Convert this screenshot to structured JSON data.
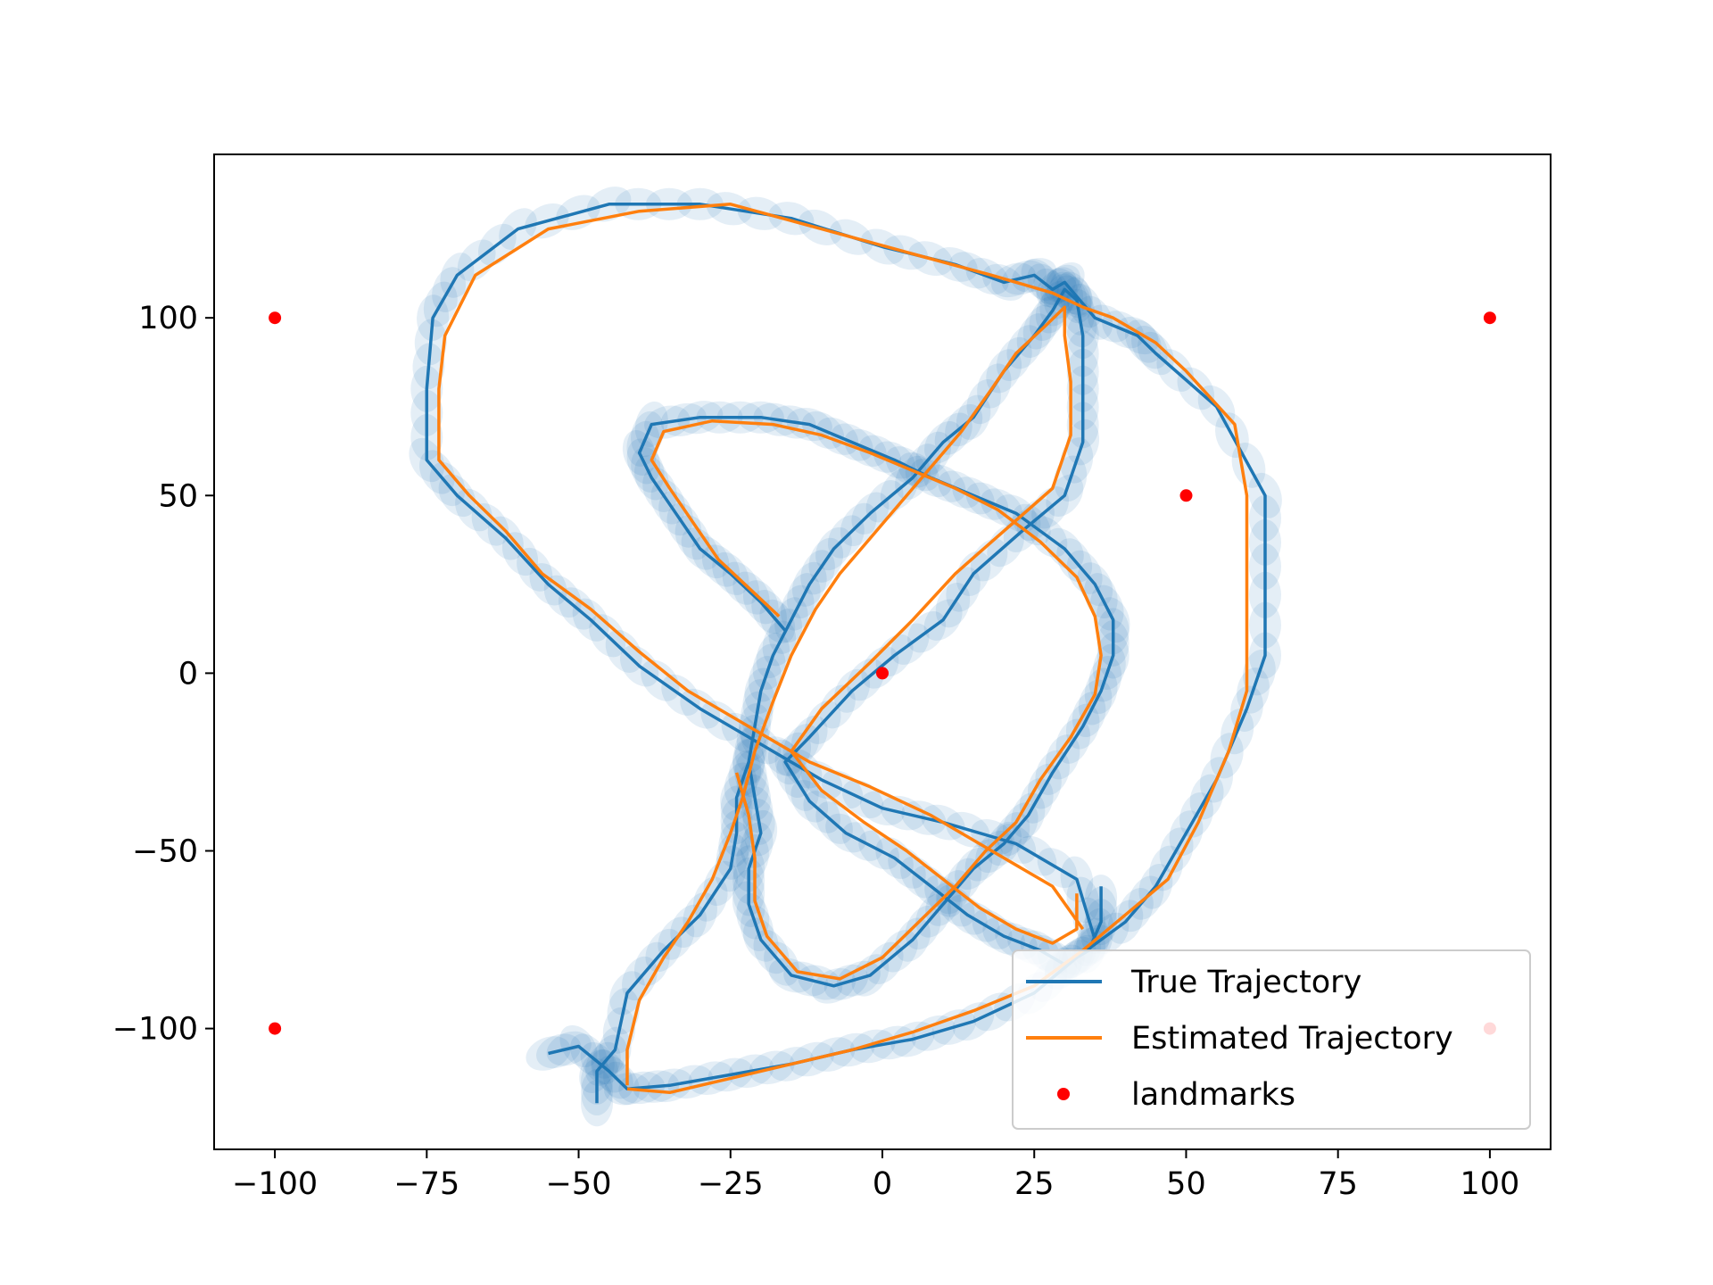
{
  "chart_data": {
    "type": "line",
    "title": "",
    "xlabel": "",
    "ylabel": "",
    "xlim": [
      -110,
      110
    ],
    "ylim": [
      -134,
      146
    ],
    "grid": false,
    "legend_position": "lower-right",
    "x_ticks": [
      -100,
      -75,
      -50,
      -25,
      0,
      25,
      50,
      75,
      100
    ],
    "x_tick_labels": [
      "−100",
      "−75",
      "−50",
      "−25",
      "0",
      "25",
      "50",
      "75",
      "100"
    ],
    "y_ticks": [
      -100,
      -50,
      0,
      50,
      100
    ],
    "y_tick_labels": [
      "−100",
      "−50",
      "0",
      "50",
      "100"
    ],
    "colors": {
      "true": "#1f77b4",
      "estimated": "#ff7f0e",
      "landmarks": "#ff0000",
      "uncertainty": "#1f77b4"
    },
    "series": [
      {
        "name": "True Trajectory",
        "kind": "line",
        "points": [
          [
            -55,
            -107
          ],
          [
            -50,
            -105
          ],
          [
            -45,
            -112
          ],
          [
            -42,
            -117
          ],
          [
            -35,
            -116
          ],
          [
            -25,
            -113
          ],
          [
            -15,
            -110
          ],
          [
            -5,
            -106
          ],
          [
            5,
            -103
          ],
          [
            15,
            -98
          ],
          [
            25,
            -90
          ],
          [
            32,
            -80
          ],
          [
            40,
            -70
          ],
          [
            45,
            -60
          ],
          [
            50,
            -45
          ],
          [
            55,
            -30
          ],
          [
            60,
            -10
          ],
          [
            63,
            5
          ],
          [
            63,
            30
          ],
          [
            63,
            50
          ],
          [
            55,
            75
          ],
          [
            45,
            90
          ],
          [
            42,
            95
          ],
          [
            35,
            100
          ],
          [
            30,
            110
          ],
          [
            28,
            108
          ],
          [
            25,
            112
          ],
          [
            20,
            110
          ],
          [
            12,
            115
          ],
          [
            0,
            120
          ],
          [
            -15,
            128
          ],
          [
            -30,
            132
          ],
          [
            -45,
            132
          ],
          [
            -60,
            125
          ],
          [
            -70,
            112
          ],
          [
            -74,
            100
          ],
          [
            -75,
            80
          ],
          [
            -75,
            60
          ],
          [
            -70,
            50
          ],
          [
            -62,
            38
          ],
          [
            -55,
            25
          ],
          [
            -48,
            15
          ],
          [
            -40,
            2
          ],
          [
            -30,
            -10
          ],
          [
            -20,
            -20
          ],
          [
            -10,
            -30
          ],
          [
            0,
            -38
          ],
          [
            10,
            -42
          ],
          [
            22,
            -48
          ],
          [
            32,
            -58
          ],
          [
            35,
            -75
          ]
        ]
      },
      {
        "name": "",
        "kind": "line",
        "points": [
          [
            -47,
            -121
          ],
          [
            -47,
            -112
          ],
          [
            -44,
            -106
          ],
          [
            -42,
            -90
          ],
          [
            -36,
            -78
          ],
          [
            -30,
            -68
          ],
          [
            -25,
            -55
          ],
          [
            -24,
            -45
          ],
          [
            -24,
            -35
          ],
          [
            -22,
            -25
          ],
          [
            -21,
            -15
          ],
          [
            -20,
            -5
          ],
          [
            -18,
            5
          ],
          [
            -15,
            15
          ],
          [
            -12,
            25
          ],
          [
            -8,
            35
          ],
          [
            -2,
            45
          ],
          [
            5,
            55
          ],
          [
            10,
            65
          ],
          [
            15,
            72
          ],
          [
            20,
            85
          ],
          [
            25,
            95
          ],
          [
            28,
            102
          ],
          [
            30,
            108
          ],
          [
            32,
            105
          ],
          [
            33,
            95
          ],
          [
            33,
            80
          ],
          [
            33,
            65
          ],
          [
            30,
            50
          ],
          [
            23,
            40
          ],
          [
            15,
            28
          ],
          [
            10,
            15
          ],
          [
            2,
            5
          ],
          [
            -5,
            -5
          ],
          [
            -12,
            -18
          ],
          [
            -16,
            -25
          ],
          [
            -12,
            -36
          ],
          [
            -6,
            -45
          ],
          [
            2,
            -52
          ],
          [
            8,
            -60
          ],
          [
            14,
            -68
          ],
          [
            20,
            -74
          ],
          [
            26,
            -78
          ],
          [
            30,
            -82
          ],
          [
            34,
            -78
          ],
          [
            36,
            -70
          ],
          [
            36,
            -60
          ]
        ]
      },
      {
        "name": "",
        "kind": "line",
        "points": [
          [
            -22,
            -25
          ],
          [
            -21,
            -35
          ],
          [
            -20,
            -45
          ],
          [
            -22,
            -55
          ],
          [
            -22,
            -65
          ],
          [
            -20,
            -75
          ],
          [
            -15,
            -85
          ],
          [
            -8,
            -88
          ],
          [
            -2,
            -85
          ],
          [
            5,
            -75
          ],
          [
            10,
            -65
          ],
          [
            15,
            -55
          ],
          [
            20,
            -48
          ],
          [
            24,
            -40
          ],
          [
            28,
            -28
          ],
          [
            33,
            -15
          ],
          [
            36,
            -5
          ],
          [
            38,
            5
          ],
          [
            38,
            15
          ],
          [
            35,
            25
          ],
          [
            30,
            35
          ],
          [
            22,
            45
          ],
          [
            15,
            50
          ],
          [
            8,
            55
          ],
          [
            2,
            60
          ],
          [
            -5,
            65
          ],
          [
            -12,
            70
          ],
          [
            -20,
            72
          ],
          [
            -30,
            72
          ],
          [
            -38,
            70
          ],
          [
            -40,
            62
          ],
          [
            -38,
            55
          ],
          [
            -34,
            45
          ],
          [
            -30,
            35
          ],
          [
            -25,
            28
          ],
          [
            -20,
            20
          ],
          [
            -16,
            12
          ]
        ]
      },
      {
        "name": "Estimated Trajectory",
        "kind": "line",
        "points": [
          [
            -42,
            -117
          ],
          [
            -35,
            -118
          ],
          [
            -25,
            -114
          ],
          [
            -15,
            -110
          ],
          [
            -5,
            -106
          ],
          [
            5,
            -101
          ],
          [
            15,
            -95
          ],
          [
            25,
            -88
          ],
          [
            33,
            -78
          ],
          [
            40,
            -68
          ],
          [
            47,
            -58
          ],
          [
            52,
            -42
          ],
          [
            57,
            -22
          ],
          [
            60,
            -5
          ],
          [
            60,
            15
          ],
          [
            60,
            35
          ],
          [
            60,
            50
          ],
          [
            58,
            70
          ],
          [
            50,
            85
          ],
          [
            45,
            93
          ],
          [
            38,
            100
          ],
          [
            33,
            103
          ],
          [
            28,
            107
          ],
          [
            18,
            112
          ],
          [
            5,
            118
          ],
          [
            -10,
            125
          ],
          [
            -25,
            132
          ],
          [
            -40,
            130
          ],
          [
            -55,
            125
          ],
          [
            -67,
            112
          ],
          [
            -72,
            95
          ],
          [
            -73,
            80
          ],
          [
            -73,
            60
          ],
          [
            -68,
            50
          ],
          [
            -62,
            40
          ],
          [
            -56,
            28
          ],
          [
            -48,
            18
          ],
          [
            -40,
            6
          ],
          [
            -32,
            -5
          ],
          [
            -22,
            -15
          ],
          [
            -12,
            -25
          ],
          [
            -2,
            -32
          ],
          [
            8,
            -40
          ],
          [
            18,
            -50
          ],
          [
            28,
            -60
          ],
          [
            33,
            -72
          ]
        ]
      },
      {
        "name": "",
        "kind": "line",
        "points": [
          [
            -42,
            -116
          ],
          [
            -42,
            -106
          ],
          [
            -40,
            -92
          ],
          [
            -36,
            -80
          ],
          [
            -32,
            -70
          ],
          [
            -28,
            -58
          ],
          [
            -25,
            -45
          ],
          [
            -23,
            -35
          ],
          [
            -21,
            -22
          ],
          [
            -18,
            -8
          ],
          [
            -15,
            5
          ],
          [
            -11,
            18
          ],
          [
            -7,
            28
          ],
          [
            -2,
            38
          ],
          [
            3,
            48
          ],
          [
            8,
            58
          ],
          [
            13,
            68
          ],
          [
            18,
            80
          ],
          [
            22,
            90
          ],
          [
            27,
            98
          ],
          [
            30,
            103
          ],
          [
            30,
            95
          ],
          [
            31,
            82
          ],
          [
            31,
            67
          ],
          [
            28,
            52
          ],
          [
            20,
            40
          ],
          [
            12,
            28
          ],
          [
            5,
            15
          ],
          [
            -2,
            3
          ],
          [
            -10,
            -10
          ],
          [
            -15,
            -22
          ],
          [
            -10,
            -33
          ],
          [
            -3,
            -42
          ],
          [
            4,
            -50
          ],
          [
            10,
            -58
          ],
          [
            16,
            -66
          ],
          [
            22,
            -72
          ],
          [
            28,
            -76
          ],
          [
            32,
            -72
          ],
          [
            32,
            -62
          ]
        ]
      },
      {
        "name": "",
        "kind": "line",
        "points": [
          [
            -24,
            -28
          ],
          [
            -22,
            -40
          ],
          [
            -21,
            -52
          ],
          [
            -21,
            -64
          ],
          [
            -19,
            -74
          ],
          [
            -14,
            -84
          ],
          [
            -7,
            -86
          ],
          [
            0,
            -80
          ],
          [
            6,
            -70
          ],
          [
            12,
            -60
          ],
          [
            17,
            -50
          ],
          [
            22,
            -42
          ],
          [
            26,
            -30
          ],
          [
            31,
            -18
          ],
          [
            35,
            -6
          ],
          [
            36,
            5
          ],
          [
            35,
            16
          ],
          [
            32,
            27
          ],
          [
            26,
            37
          ],
          [
            19,
            46
          ],
          [
            12,
            52
          ],
          [
            5,
            57
          ],
          [
            -2,
            62
          ],
          [
            -10,
            67
          ],
          [
            -18,
            70
          ],
          [
            -28,
            71
          ],
          [
            -36,
            68
          ],
          [
            -38,
            60
          ],
          [
            -35,
            52
          ],
          [
            -31,
            42
          ],
          [
            -27,
            32
          ],
          [
            -22,
            24
          ],
          [
            -17,
            16
          ]
        ]
      },
      {
        "name": "landmarks",
        "kind": "scatter",
        "points": [
          [
            -100,
            100
          ],
          [
            100,
            100
          ],
          [
            50,
            50
          ],
          [
            0,
            0
          ],
          [
            -100,
            -100
          ],
          [
            100,
            -100
          ]
        ]
      }
    ]
  }
}
